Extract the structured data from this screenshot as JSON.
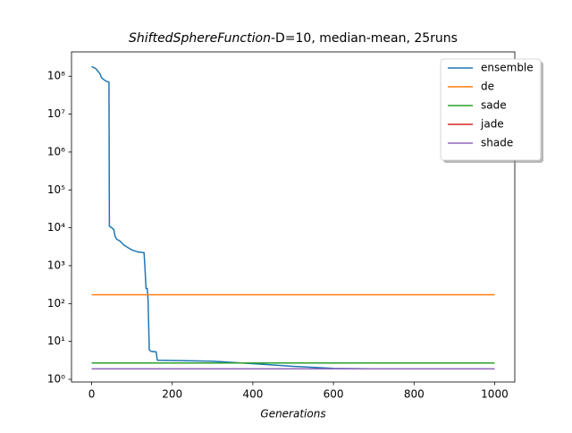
{
  "chart_data": {
    "type": "line",
    "title_italic": "ShiftedSphereFunction",
    "title": "-D=10, median-mean, 25runs",
    "xlabel": "Generations",
    "xlim": [
      -50,
      1050
    ],
    "xticks": [
      0,
      200,
      400,
      600,
      800,
      1000
    ],
    "ylim": [
      0.85,
      440000000
    ],
    "log_y": true,
    "yticks": [
      {
        "value": 1,
        "label": "10⁰"
      },
      {
        "value": 10,
        "label": "10¹"
      },
      {
        "value": 100,
        "label": "10²"
      },
      {
        "value": 1000,
        "label": "10³"
      },
      {
        "value": 10000,
        "label": "10⁴"
      },
      {
        "value": 100000,
        "label": "10⁵"
      },
      {
        "value": 1000000,
        "label": "10⁶"
      },
      {
        "value": 10000000,
        "label": "10⁷"
      },
      {
        "value": 100000000,
        "label": "10⁸"
      }
    ],
    "legend_position": "upper right",
    "series": [
      {
        "name": "ensemble",
        "color": "#1f77b4",
        "x": [
          0,
          10,
          20,
          25,
          35,
          43,
          44,
          50,
          55,
          58,
          62,
          70,
          80,
          90,
          100,
          115,
          130,
          132,
          135,
          138,
          140,
          143,
          147,
          160,
          163,
          300,
          400,
          500,
          540,
          600,
          700,
          1000
        ],
        "values": [
          180000000,
          160000000,
          120000000,
          90000000,
          75000000,
          70000000,
          11000,
          10000,
          9000,
          6000,
          5000,
          4500,
          3500,
          3000,
          2600,
          2300,
          2200,
          1000,
          250,
          250,
          120,
          6,
          5.5,
          5.3,
          3.2,
          3.0,
          2.6,
          2.2,
          2.1,
          1.95,
          1.9,
          1.9
        ]
      },
      {
        "name": "de",
        "color": "#ff7f0e",
        "x": [
          0,
          1000
        ],
        "values": [
          170,
          170
        ]
      },
      {
        "name": "sade",
        "color": "#2ca02c",
        "x": [
          0,
          1000
        ],
        "values": [
          2.7,
          2.7
        ]
      },
      {
        "name": "jade",
        "color": "#d62728",
        "x": [
          0,
          1000
        ],
        "values": [
          1.9,
          1.9
        ]
      },
      {
        "name": "shade",
        "color": "#9467bd",
        "x": [
          0,
          1000
        ],
        "values": [
          1.9,
          1.9
        ]
      }
    ]
  }
}
